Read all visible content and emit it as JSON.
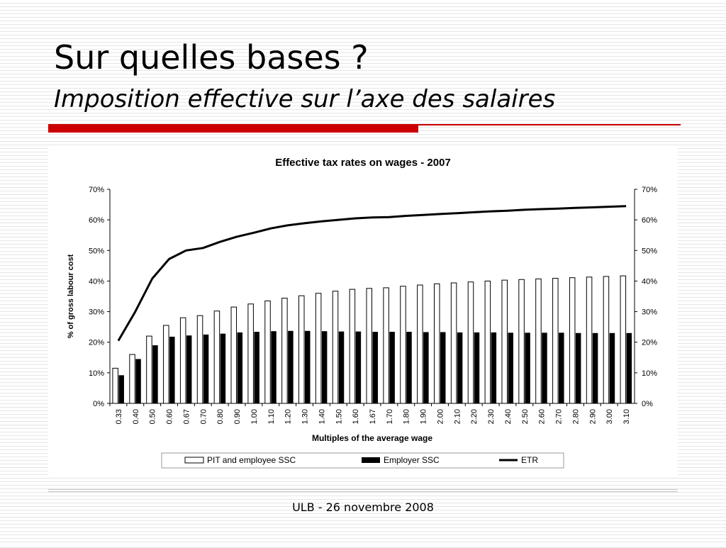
{
  "slide": {
    "title": "Sur quelles bases ?",
    "subtitle": "Imposition effective sur l’axe des salaires",
    "footer": "ULB - 26 novembre 2008"
  },
  "colors": {
    "accent": "#cc0000",
    "pit_fill": "#ffffff",
    "employer_fill": "#000000",
    "etr_line": "#000000"
  },
  "chart_data": {
    "type": "bar",
    "title": "Effective tax rates on wages - 2007",
    "xlabel": "Multiples of the average wage",
    "ylabel": "% of gross labour cost",
    "ylim": [
      0,
      0.7
    ],
    "yticks": [
      "0%",
      "10%",
      "20%",
      "30%",
      "40%",
      "50%",
      "60%",
      "70%"
    ],
    "categories": [
      "0.33",
      "0.40",
      "0.50",
      "0.60",
      "0.67",
      "0.70",
      "0.80",
      "0.90",
      "1.00",
      "1.10",
      "1.20",
      "1.30",
      "1.40",
      "1.50",
      "1.60",
      "1.67",
      "1.70",
      "1.80",
      "1.90",
      "2.00",
      "2.10",
      "2.20",
      "2.30",
      "2.40",
      "2.50",
      "2.60",
      "2.70",
      "2.80",
      "2.90",
      "3.00",
      "3.10"
    ],
    "series": [
      {
        "name": "PIT and employee SSC",
        "type": "bar",
        "values": [
          0.115,
          0.16,
          0.22,
          0.255,
          0.28,
          0.287,
          0.302,
          0.315,
          0.325,
          0.335,
          0.344,
          0.352,
          0.36,
          0.367,
          0.373,
          0.376,
          0.378,
          0.383,
          0.387,
          0.391,
          0.394,
          0.397,
          0.4,
          0.403,
          0.405,
          0.407,
          0.409,
          0.411,
          0.413,
          0.415,
          0.417
        ]
      },
      {
        "name": "Employer SSC",
        "type": "bar",
        "values": [
          0.092,
          0.145,
          0.19,
          0.218,
          0.222,
          0.225,
          0.228,
          0.232,
          0.234,
          0.236,
          0.237,
          0.237,
          0.236,
          0.235,
          0.235,
          0.234,
          0.234,
          0.234,
          0.233,
          0.233,
          0.232,
          0.232,
          0.232,
          0.231,
          0.231,
          0.231,
          0.231,
          0.23,
          0.23,
          0.23,
          0.23
        ]
      },
      {
        "name": "ETR",
        "type": "line",
        "values": [
          0.205,
          0.3,
          0.408,
          0.472,
          0.5,
          0.508,
          0.528,
          0.545,
          0.558,
          0.572,
          0.582,
          0.589,
          0.595,
          0.6,
          0.605,
          0.608,
          0.609,
          0.613,
          0.616,
          0.619,
          0.622,
          0.625,
          0.628,
          0.63,
          0.633,
          0.635,
          0.637,
          0.639,
          0.641,
          0.643,
          0.645
        ]
      }
    ],
    "legend_position": "bottom",
    "secondary_axis": true
  }
}
